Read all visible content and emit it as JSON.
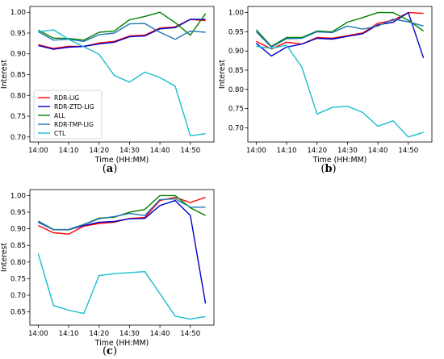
{
  "series_meta": [
    {
      "name": "RDR-LIG",
      "color": "#ff0000"
    },
    {
      "name": "RDR-ZTD-LIG",
      "color": "#0000cc"
    },
    {
      "name": "ALL",
      "color": "#008000"
    },
    {
      "name": "RDR-TMP-LIG",
      "color": "#1f77b4"
    },
    {
      "name": "CTL",
      "color": "#17becf"
    }
  ],
  "chart_data": [
    {
      "type": "line",
      "caption": "a",
      "xlabel": "Time (HH:MM)",
      "ylabel": "Interest",
      "x": [
        0,
        5,
        10,
        15,
        20,
        25,
        30,
        35,
        40,
        45,
        50,
        55
      ],
      "xticks": [
        "14:00",
        "14:10",
        "14:20",
        "14:30",
        "14:40",
        "14:50"
      ],
      "xlim": [
        -2.75,
        57.75
      ],
      "ylim": [
        0.688,
        1.014
      ],
      "yticks": [
        "0.70",
        "0.75",
        "0.80",
        "0.85",
        "0.90",
        "0.95",
        "1.00"
      ],
      "legend": "bottom-left",
      "series": [
        {
          "name": "RDR-LIG",
          "values": [
            0.922,
            0.913,
            0.918,
            0.918,
            0.926,
            0.93,
            0.943,
            0.945,
            0.962,
            0.965,
            0.983,
            0.98
          ]
        },
        {
          "name": "RDR-ZTD-LIG",
          "values": [
            0.92,
            0.911,
            0.916,
            0.918,
            0.924,
            0.928,
            0.941,
            0.943,
            0.96,
            0.963,
            0.983,
            0.983
          ]
        },
        {
          "name": "ALL",
          "values": [
            0.957,
            0.938,
            0.937,
            0.933,
            0.952,
            0.955,
            0.982,
            0.99,
            1.0,
            0.975,
            0.945,
            0.997
          ]
        },
        {
          "name": "RDR-TMP-LIG",
          "values": [
            0.953,
            0.933,
            0.935,
            0.93,
            0.946,
            0.95,
            0.972,
            0.973,
            0.952,
            0.935,
            0.955,
            0.952
          ]
        },
        {
          "name": "CTL",
          "values": [
            0.953,
            0.958,
            0.935,
            0.917,
            0.899,
            0.848,
            0.832,
            0.856,
            0.843,
            0.822,
            0.703,
            0.708
          ]
        }
      ]
    },
    {
      "type": "line",
      "caption": "b",
      "xlabel": "Time (HH:MM)",
      "ylabel": "Interest",
      "x": [
        0,
        5,
        10,
        15,
        20,
        25,
        30,
        35,
        40,
        45,
        50,
        55
      ],
      "xticks": [
        "14:00",
        "14:10",
        "14:20",
        "14:30",
        "14:40",
        "14:50"
      ],
      "xlim": [
        -2.75,
        57.75
      ],
      "ylim": [
        0.663,
        1.016
      ],
      "yticks": [
        "0.70",
        "0.75",
        "0.80",
        "0.85",
        "0.90",
        "0.95",
        "1.00"
      ],
      "series": [
        {
          "name": "RDR-LIG",
          "values": [
            0.925,
            0.905,
            0.923,
            0.918,
            0.935,
            0.933,
            0.94,
            0.947,
            0.972,
            0.98,
            1.0,
            0.998
          ]
        },
        {
          "name": "RDR-ZTD-LIG",
          "values": [
            0.92,
            0.887,
            0.91,
            0.918,
            0.933,
            0.931,
            0.938,
            0.945,
            0.968,
            0.975,
            1.0,
            0.882
          ]
        },
        {
          "name": "ALL",
          "values": [
            0.955,
            0.912,
            0.935,
            0.935,
            0.952,
            0.95,
            0.975,
            0.987,
            1.0,
            1.0,
            0.98,
            0.952
          ]
        },
        {
          "name": "RDR-TMP-LIG",
          "values": [
            0.95,
            0.91,
            0.932,
            0.933,
            0.95,
            0.948,
            0.965,
            0.957,
            0.965,
            0.983,
            0.976,
            0.965
          ]
        },
        {
          "name": "CTL",
          "values": [
            0.912,
            0.907,
            0.915,
            0.858,
            0.736,
            0.753,
            0.756,
            0.74,
            0.704,
            0.718,
            0.676,
            0.688
          ]
        }
      ]
    },
    {
      "type": "line",
      "caption": "c",
      "xlabel": "Time (HH:MM)",
      "ylabel": "Interest",
      "x": [
        0,
        5,
        10,
        15,
        20,
        25,
        30,
        35,
        40,
        45,
        50,
        55
      ],
      "xticks": [
        "14:00",
        "14:10",
        "14:20",
        "14:30",
        "14:40",
        "14:50"
      ],
      "xlim": [
        -2.75,
        57.75
      ],
      "ylim": [
        0.61,
        1.018
      ],
      "yticks": [
        "0.65",
        "0.70",
        "0.75",
        "0.80",
        "0.85",
        "0.90",
        "0.95",
        "1.00"
      ],
      "series": [
        {
          "name": "RDR-LIG",
          "values": [
            0.91,
            0.888,
            0.884,
            0.908,
            0.916,
            0.92,
            0.931,
            0.934,
            0.985,
            0.995,
            0.979,
            0.995
          ]
        },
        {
          "name": "RDR-ZTD-LIG",
          "values": [
            0.92,
            0.897,
            0.897,
            0.91,
            0.92,
            0.922,
            0.93,
            0.931,
            0.97,
            0.985,
            0.94,
            0.675
          ]
        },
        {
          "name": "ALL",
          "values": [
            0.923,
            0.898,
            0.897,
            0.913,
            0.932,
            0.935,
            0.95,
            0.958,
            1.0,
            1.0,
            0.963,
            0.94
          ]
        },
        {
          "name": "RDR-TMP-LIG",
          "values": [
            0.922,
            0.897,
            0.898,
            0.913,
            0.93,
            0.937,
            0.946,
            0.94,
            0.988,
            0.99,
            0.965,
            0.965
          ]
        },
        {
          "name": "CTL",
          "values": [
            0.825,
            0.669,
            0.655,
            0.645,
            0.759,
            0.765,
            0.768,
            0.771,
            0.705,
            0.637,
            0.628,
            0.636
          ]
        }
      ]
    }
  ]
}
